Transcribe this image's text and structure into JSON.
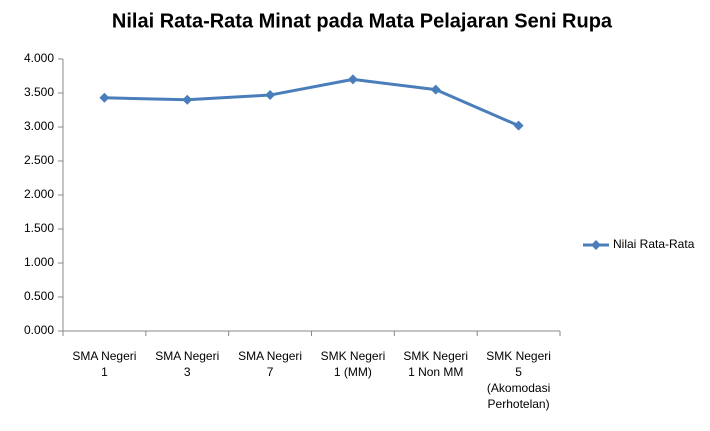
{
  "chart_data": {
    "type": "line",
    "title": "Nilai Rata-Rata Minat pada Mata Pelajaran Seni Rupa",
    "categories": [
      "SMA Negeri\n1",
      "SMA Negeri\n3",
      "SMA Negeri\n7",
      "SMK Negeri\n1 (MM)",
      "SMK Negeri\n1 Non MM",
      "SMK Negeri\n5\n(Akomodasi\nPerhotelan)"
    ],
    "series": [
      {
        "name": "Nilai Rata-Rata",
        "color": "#4a7ebb",
        "values": [
          3.43,
          3.4,
          3.47,
          3.7,
          3.55,
          3.02
        ]
      }
    ],
    "ylim": [
      0,
      4
    ],
    "yticks": [
      {
        "value": 0,
        "label": "0.000"
      },
      {
        "value": 0.5,
        "label": "0.500"
      },
      {
        "value": 1,
        "label": "1.000"
      },
      {
        "value": 1.5,
        "label": "1.500"
      },
      {
        "value": 2,
        "label": "2.000"
      },
      {
        "value": 2.5,
        "label": "2.500"
      },
      {
        "value": 3,
        "label": "3.000"
      },
      {
        "value": 3.5,
        "label": "3.500"
      },
      {
        "value": 4,
        "label": "4.000"
      }
    ],
    "grid": false,
    "legend": "right"
  }
}
